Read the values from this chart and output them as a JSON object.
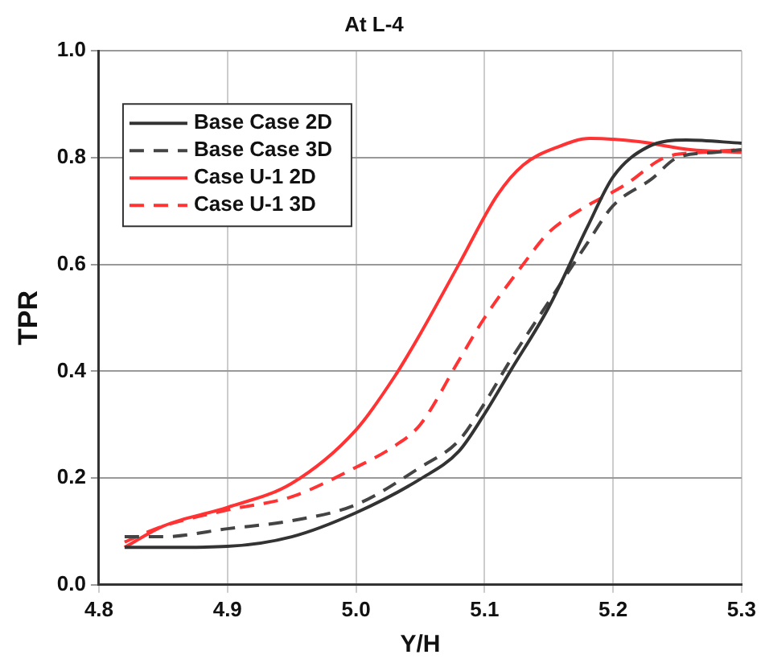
{
  "chart_data": {
    "type": "line",
    "title": "At L-4",
    "xlabel": "Y/H",
    "ylabel": "TPR",
    "xlim": [
      4.8,
      5.3
    ],
    "xticks": [
      4.8,
      4.9,
      {
        "value": 5,
        "label": "5.0"
      },
      5.1,
      5.2,
      5.3
    ],
    "ylim": [
      0,
      1.0
    ],
    "yticks": [
      {
        "value": 0,
        "label": "0.0"
      },
      0.2,
      0.4,
      0.6,
      0.8,
      {
        "value": 1,
        "label": "1.0"
      }
    ],
    "grid": true,
    "legend": "top left",
    "marker": "none",
    "series": [
      {
        "name": "Base Case 2D",
        "color": "#333333",
        "line_style": "solid",
        "x": [
          4.82,
          4.85,
          4.9,
          4.95,
          5.0,
          5.05,
          5.08,
          5.1,
          5.12,
          5.15,
          5.18,
          5.2,
          5.227,
          5.257,
          5.3
        ],
        "values": [
          0.07,
          0.07,
          0.072,
          0.09,
          0.135,
          0.198,
          0.25,
          0.32,
          0.4,
          0.52,
          0.67,
          0.764,
          0.82,
          0.833,
          0.827
        ]
      },
      {
        "name": "Base Case 3D",
        "color": "#444444",
        "line_style": "dashed",
        "x": [
          4.82,
          4.85,
          4.9,
          4.95,
          5.0,
          5.05,
          5.08,
          5.1,
          5.12,
          5.15,
          5.18,
          5.2,
          5.23,
          5.25,
          5.28,
          5.3
        ],
        "values": [
          0.09,
          0.09,
          0.105,
          0.12,
          0.15,
          0.22,
          0.27,
          0.34,
          0.42,
          0.53,
          0.64,
          0.71,
          0.76,
          0.8,
          0.81,
          0.815
        ]
      },
      {
        "name": "Case U-1 2D",
        "color": "#ff3333",
        "line_style": "solid",
        "x": [
          4.82,
          4.85,
          4.9,
          4.95,
          5.0,
          5.03,
          5.05,
          5.08,
          5.11,
          5.13,
          5.157,
          5.182,
          5.22,
          5.26,
          5.3
        ],
        "values": [
          0.07,
          0.11,
          0.145,
          0.19,
          0.29,
          0.39,
          0.47,
          0.6,
          0.73,
          0.786,
          0.82,
          0.836,
          0.83,
          0.815,
          0.81
        ]
      },
      {
        "name": "Case U-1 3D",
        "color": "#ff3333",
        "line_style": "dashed",
        "x": [
          4.82,
          4.85,
          4.9,
          4.95,
          5.0,
          5.03,
          5.05,
          5.08,
          5.1,
          5.13,
          5.15,
          5.173,
          5.21,
          5.24,
          5.27,
          5.3
        ],
        "values": [
          0.08,
          0.11,
          0.14,
          0.165,
          0.22,
          0.26,
          0.3,
          0.42,
          0.5,
          0.6,
          0.66,
          0.7,
          0.75,
          0.8,
          0.81,
          0.815
        ]
      }
    ]
  }
}
